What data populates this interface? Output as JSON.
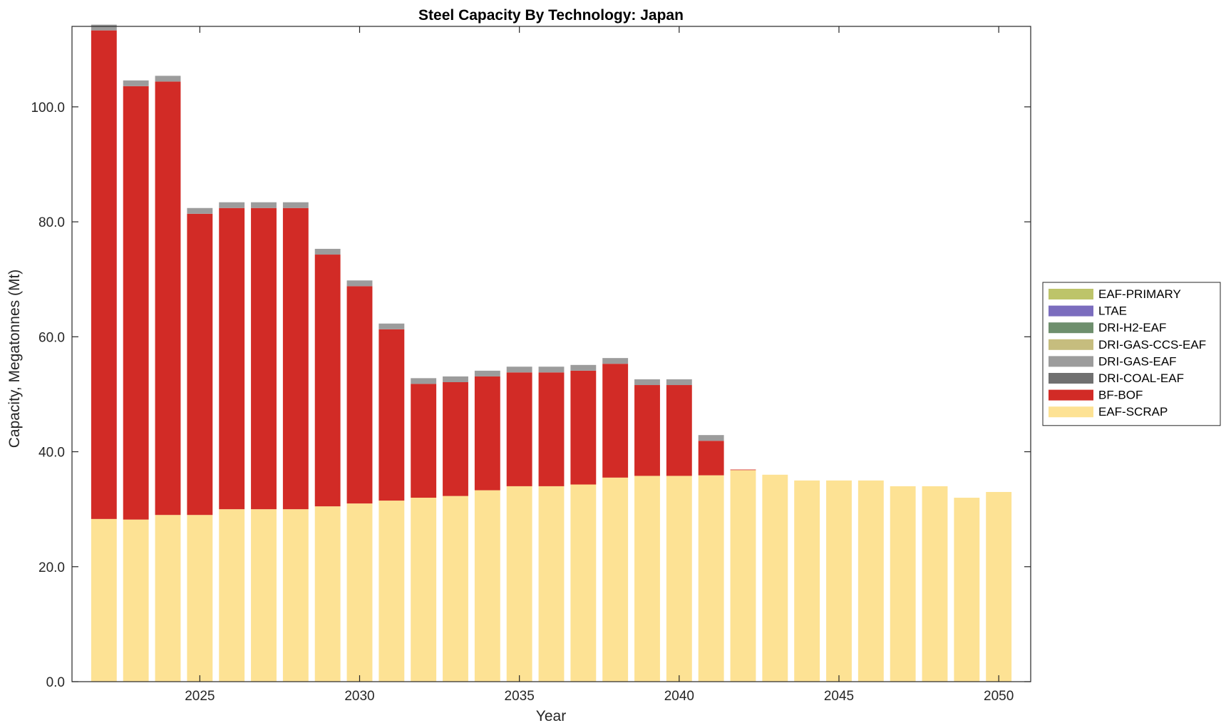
{
  "chart_data": {
    "type": "bar",
    "stacked": true,
    "title": "Steel Capacity By Technology: Japan",
    "xlabel": "Year",
    "ylabel": "Capacity, Megatonnes (Mt)",
    "xlim": [
      2021,
      2051
    ],
    "ylim": [
      0,
      114
    ],
    "x_ticks": [
      2025,
      2030,
      2035,
      2040,
      2045,
      2050
    ],
    "y_ticks": [
      0,
      20,
      40,
      60,
      80,
      100
    ],
    "y_tick_labels": [
      "0.0",
      "20.0",
      "40.0",
      "60.0",
      "80.0",
      "100.0"
    ],
    "grid": false,
    "legend_position": "right",
    "x": [
      2022,
      2023,
      2024,
      2025,
      2026,
      2027,
      2028,
      2029,
      2030,
      2031,
      2032,
      2033,
      2034,
      2035,
      2036,
      2037,
      2038,
      2039,
      2040,
      2041,
      2042,
      2043,
      2044,
      2045,
      2046,
      2047,
      2048,
      2049,
      2050
    ],
    "series": [
      {
        "name": "EAF-SCRAP",
        "color": "#FDE294",
        "values": [
          28.3,
          28.2,
          29.0,
          29.0,
          30.0,
          30.0,
          30.0,
          30.5,
          31.0,
          31.5,
          32.0,
          32.3,
          33.3,
          34.0,
          34.0,
          34.3,
          35.5,
          35.8,
          35.8,
          35.9,
          36.8,
          36.0,
          35.0,
          35.0,
          35.0,
          34.0,
          34.0,
          32.0,
          33.0
        ]
      },
      {
        "name": "BF-BOF",
        "color": "#D22B26",
        "values": [
          85.0,
          75.4,
          75.4,
          52.4,
          52.4,
          52.4,
          52.4,
          43.8,
          37.8,
          29.8,
          19.8,
          19.8,
          19.8,
          19.8,
          19.8,
          19.8,
          19.8,
          15.8,
          15.8,
          6.0,
          0.1,
          0,
          0,
          0,
          0,
          0,
          0,
          0,
          0
        ]
      },
      {
        "name": "DRI-COAL-EAF",
        "color": "#707070",
        "values": [
          0,
          0,
          0,
          0,
          0,
          0,
          0,
          0,
          0,
          0,
          0,
          0,
          0,
          0,
          0,
          0,
          0,
          0,
          0,
          0,
          0,
          0,
          0,
          0,
          0,
          0,
          0,
          0,
          0
        ]
      },
      {
        "name": "DRI-GAS-EAF",
        "color": "#9C9C9C",
        "values": [
          1.0,
          1.0,
          1.0,
          1.0,
          1.0,
          1.0,
          1.0,
          1.0,
          1.0,
          1.0,
          1.0,
          1.0,
          1.0,
          1.0,
          1.0,
          1.0,
          1.0,
          1.0,
          1.0,
          1.0,
          0,
          0,
          0,
          0,
          0,
          0,
          0,
          0,
          0
        ]
      },
      {
        "name": "DRI-GAS-CCS-EAF",
        "color": "#C6BD7E",
        "values": [
          0,
          0,
          0,
          0,
          0,
          0,
          0,
          0,
          0,
          0,
          0,
          0,
          0,
          0,
          0,
          0,
          0,
          0,
          0,
          0,
          0,
          0,
          0,
          0,
          0,
          0,
          0,
          0,
          0
        ]
      },
      {
        "name": "DRI-H2-EAF",
        "color": "#6E8F6D",
        "values": [
          0,
          0,
          0,
          0,
          0,
          0,
          0,
          0,
          0,
          0,
          0,
          0,
          0,
          0,
          0,
          0,
          0,
          0,
          0,
          0,
          0,
          0,
          0,
          0,
          0,
          0,
          0,
          0,
          0
        ]
      },
      {
        "name": "LTAE",
        "color": "#7B6DBE",
        "values": [
          0,
          0,
          0,
          0,
          0,
          0,
          0,
          0,
          0,
          0,
          0,
          0,
          0,
          0,
          0,
          0,
          0,
          0,
          0,
          0,
          0,
          0,
          0,
          0,
          0,
          0,
          0,
          0,
          0
        ]
      },
      {
        "name": "EAF-PRIMARY",
        "color": "#BDC46A",
        "values": [
          0,
          0,
          0,
          0,
          0,
          0,
          0,
          0,
          0,
          0,
          0,
          0,
          0,
          0,
          0,
          0,
          0,
          0,
          0,
          0,
          0,
          0,
          0,
          0,
          0,
          0,
          0,
          0,
          0
        ]
      }
    ],
    "legend_order": [
      "EAF-PRIMARY",
      "LTAE",
      "DRI-H2-EAF",
      "DRI-GAS-CCS-EAF",
      "DRI-GAS-EAF",
      "DRI-COAL-EAF",
      "BF-BOF",
      "EAF-SCRAP"
    ]
  }
}
